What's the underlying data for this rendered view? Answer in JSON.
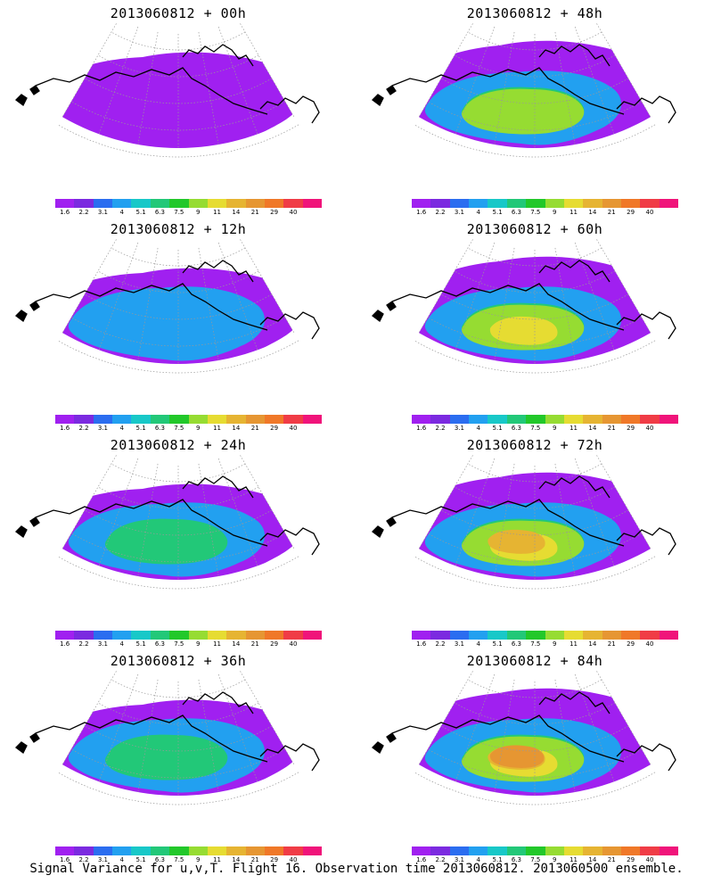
{
  "colors": [
    "#a020f0",
    "#7b2ae0",
    "#2b6df0",
    "#22a0f0",
    "#18c8c8",
    "#22c878",
    "#22c82a",
    "#96dc32",
    "#e6dc32",
    "#e6b432",
    "#e69632",
    "#f07828",
    "#f03c46",
    "#f0147a"
  ],
  "tick_labels": [
    "1.6",
    "2.2",
    "3.1",
    "4",
    "5.1",
    "6.3",
    "7.5",
    "9",
    "11",
    "14",
    "21",
    "29",
    "40"
  ],
  "panels": [
    {
      "title": "2013060812 + 00h",
      "level": 0
    },
    {
      "title": "2013060812 + 48h",
      "level": 3
    },
    {
      "title": "2013060812 + 12h",
      "level": 1
    },
    {
      "title": "2013060812 + 60h",
      "level": 4
    },
    {
      "title": "2013060812 + 24h",
      "level": 2
    },
    {
      "title": "2013060812 + 72h",
      "level": 5
    },
    {
      "title": "2013060812 + 36h",
      "level": 2
    },
    {
      "title": "2013060812 + 84h",
      "level": 6
    }
  ],
  "footer": "Signal Variance for u,v,T. Flight 16. Observation time 2013060812. 2013060500 ensemble."
}
